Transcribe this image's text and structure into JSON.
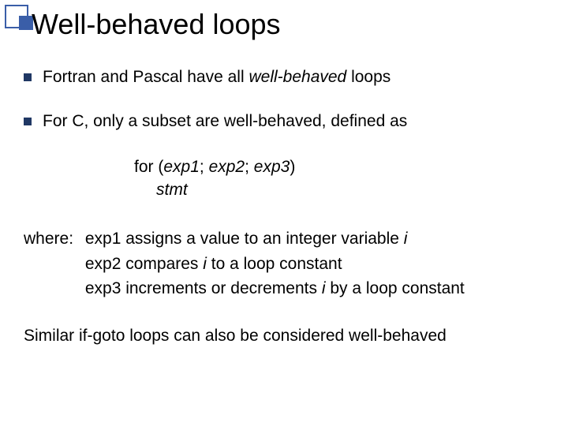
{
  "title": "Well-behaved loops",
  "bullets": [
    {
      "pre": "Fortran and Pascal have all ",
      "em": "well-behaved",
      "post": " loops"
    },
    {
      "pre": "For C, only a subset are well-behaved, defined as",
      "em": "",
      "post": ""
    }
  ],
  "code": {
    "forline_pre": "for (",
    "exp1": "exp1",
    "sep1": "; ",
    "exp2": "exp2",
    "sep2": "; ",
    "exp3": "exp3",
    "forline_post": ")",
    "stmt": "stmt"
  },
  "where": {
    "label": "where:",
    "l1_a": "exp1 assigns a value to an integer variable ",
    "l1_i": "i",
    "l2_a": "exp2 compares ",
    "l2_i": "i",
    "l2_b": " to a loop constant",
    "l3_a": "exp3 increments or decrements ",
    "l3_i": "i",
    "l3_b": " by a loop constant"
  },
  "footer": "Similar if-goto loops can also be considered well-behaved",
  "colors": {
    "accent": "#3a5ea8",
    "bullet": "#203864",
    "text": "#000000",
    "background": "#ffffff"
  }
}
